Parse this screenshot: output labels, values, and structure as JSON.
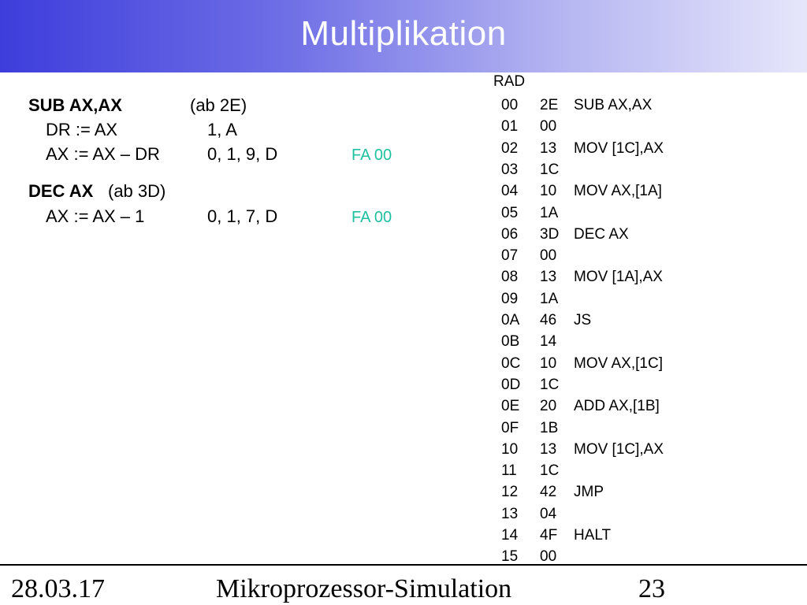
{
  "title": "Multiplikation",
  "left_block": {
    "sub_header": "SUB AX,AX",
    "sub_header_note": "(ab 2E)",
    "row1_op": "DR := AX",
    "row1_seq": "1, A",
    "row2_op": "AX := AX – DR",
    "row2_seq": "0, 1, 9, D",
    "row2_flag": "FA 00",
    "dec_header": "DEC AX",
    "dec_note": "(ab 3D)",
    "row3_op": "AX := AX – 1",
    "row3_seq": "0, 1, 7, D",
    "row3_flag": "FA 00"
  },
  "ram": {
    "header": "RAD",
    "rows": [
      {
        "addr": "00",
        "val": "2E",
        "instr": "SUB AX,AX"
      },
      {
        "addr": "01",
        "val": "00",
        "instr": ""
      },
      {
        "addr": "02",
        "val": "13",
        "instr": "MOV [1C],AX"
      },
      {
        "addr": "03",
        "val": "1C",
        "instr": ""
      },
      {
        "addr": "04",
        "val": "10",
        "instr": "MOV AX,[1A]"
      },
      {
        "addr": "05",
        "val": "1A",
        "instr": ""
      },
      {
        "addr": "06",
        "val": "3D",
        "instr": "DEC AX"
      },
      {
        "addr": "07",
        "val": "00",
        "instr": ""
      },
      {
        "addr": "08",
        "val": "13",
        "instr": "MOV [1A],AX"
      },
      {
        "addr": "09",
        "val": "1A",
        "instr": ""
      },
      {
        "addr": "0A",
        "val": "46",
        "instr": "JS"
      },
      {
        "addr": "0B",
        "val": "14",
        "instr": ""
      },
      {
        "addr": "0C",
        "val": "10",
        "instr": "MOV AX,[1C]"
      },
      {
        "addr": "0D",
        "val": "1C",
        "instr": ""
      },
      {
        "addr": "0E",
        "val": "20",
        "instr": "ADD AX,[1B]"
      },
      {
        "addr": "0F",
        "val": "1B",
        "instr": ""
      },
      {
        "addr": "10",
        "val": "13",
        "instr": "MOV [1C],AX"
      },
      {
        "addr": "11",
        "val": "1C",
        "instr": ""
      },
      {
        "addr": "12",
        "val": "42",
        "instr": "JMP"
      },
      {
        "addr": "13",
        "val": "04",
        "instr": ""
      },
      {
        "addr": "14",
        "val": "4F",
        "instr": "HALT"
      },
      {
        "addr": "15",
        "val": "00",
        "instr": ""
      }
    ]
  },
  "footer": {
    "date": "28.03.17",
    "center": "Mikroprozessor-Simulation",
    "page": "23"
  },
  "colors": {
    "title_gradient_start": "#3d3ddc",
    "title_gradient_end": "#e6e6fb",
    "flag_color": "#1fc0a0"
  }
}
